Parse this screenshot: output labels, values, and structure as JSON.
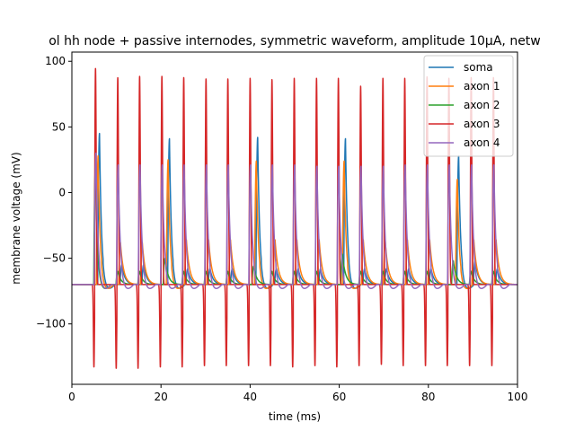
{
  "chart_data": {
    "type": "line",
    "title": "ol hh node + passive internodes, symmetric waveform, amplitude 10µA, netw",
    "xlabel": "time (ms)",
    "ylabel": "membrane voltage (mV)",
    "xlim": [
      0,
      100
    ],
    "ylim": [
      -146,
      107
    ],
    "xticks": [
      0,
      20,
      40,
      60,
      80,
      100
    ],
    "xtick_labels": [
      "0",
      "20",
      "40",
      "60",
      "80",
      "100"
    ],
    "yticks": [
      -100,
      -50,
      0,
      50,
      100
    ],
    "ytick_labels": [
      "−100",
      "−50",
      "0",
      "50",
      "100"
    ],
    "grid": false,
    "legend_position": "top-right",
    "rest_potential": -70,
    "stim_period": 4.95,
    "series": [
      {
        "name": "soma",
        "color": "#1f77b4",
        "baseline": -70,
        "pulse_times": [
          6.2,
          11.2,
          16.1,
          21.9,
          26.0,
          31.0,
          36.0,
          41.7,
          45.9,
          50.8,
          55.8,
          61.4,
          65.7,
          70.6,
          75.6,
          80.6,
          86.8,
          90.5,
          95.5
        ],
        "pulse_peaks": [
          45,
          -55,
          -55,
          41,
          -58,
          -58,
          -58,
          42,
          -58,
          -58,
          -58,
          41,
          -58,
          -58,
          -58,
          -58,
          28,
          -52,
          -58
        ]
      },
      {
        "name": "axon 1",
        "color": "#ff7f0e",
        "baseline": -70,
        "pulse_times": [
          5.9,
          10.9,
          15.8,
          21.6,
          25.7,
          30.7,
          35.6,
          41.4,
          45.6,
          50.5,
          55.5,
          61.1,
          65.4,
          70.3,
          75.3,
          80.3,
          86.5,
          90.2,
          95.2
        ],
        "pulse_peaks": [
          28,
          -38,
          -38,
          25,
          -36,
          -36,
          -36,
          24,
          -36,
          -36,
          -36,
          24,
          -36,
          -36,
          -36,
          -36,
          10,
          -36,
          -36
        ]
      },
      {
        "name": "axon 2",
        "color": "#2ca02c",
        "baseline": -70,
        "pulse_times": [
          5.3,
          10.3,
          15.2,
          20.9,
          25.1,
          30.1,
          35.0,
          40.8,
          44.9,
          49.9,
          54.9,
          60.7,
          64.8,
          69.8,
          74.7,
          79.7,
          85.6,
          89.6,
          94.6
        ],
        "pulse_peaks": [
          20,
          -60,
          -60,
          -50,
          -60,
          -60,
          -60,
          -56,
          -60,
          -60,
          -60,
          -47,
          -60,
          -60,
          -60,
          -60,
          -52,
          -60,
          -60
        ]
      },
      {
        "name": "axon 3",
        "color": "#d62728",
        "baseline": -70,
        "pulse_times": [
          5.3,
          10.3,
          15.2,
          20.2,
          25.1,
          30.1,
          35.0,
          40.0,
          44.9,
          49.9,
          54.9,
          59.8,
          64.8,
          69.8,
          74.7,
          79.7,
          84.6,
          89.6,
          94.6
        ],
        "pulse_peaks": [
          95,
          88,
          89,
          89,
          88,
          87,
          87,
          87,
          86,
          87,
          87,
          87,
          81,
          87,
          87,
          88,
          87,
          88,
          88
        ],
        "trough_values": [
          -133,
          -134,
          -134,
          -133,
          -133,
          -132,
          -132,
          -132,
          -132,
          -133,
          -132,
          -133,
          -132,
          -131,
          -132,
          -132,
          -132,
          -132,
          -132
        ]
      },
      {
        "name": "axon 4",
        "color": "#9467bd",
        "baseline": -70,
        "pulse_times": [
          5.4,
          10.4,
          15.3,
          20.3,
          25.2,
          30.2,
          35.1,
          40.1,
          45.0,
          50.0,
          55.0,
          59.9,
          64.9,
          69.9,
          74.8,
          79.8,
          84.7,
          89.7,
          94.7
        ],
        "pulse_peaks": [
          30,
          21,
          21,
          21,
          21,
          21,
          21,
          21,
          21,
          21,
          20,
          20,
          20,
          20,
          21,
          21,
          21,
          21,
          21
        ]
      }
    ]
  }
}
